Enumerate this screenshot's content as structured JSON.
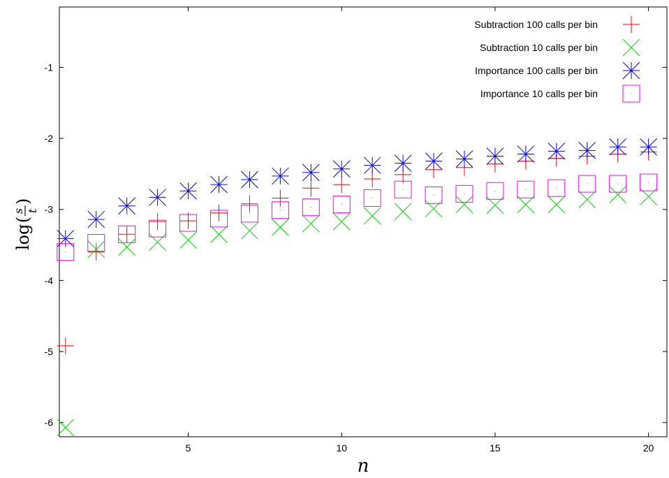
{
  "chart_data": {
    "type": "scatter",
    "title": "",
    "xlabel": "n",
    "ylabel": "log(s/t)",
    "ylabel_parts": {
      "func": "log",
      "num": "s",
      "den": "t"
    },
    "xlim": [
      0.8,
      20.6
    ],
    "ylim": [
      -6.2,
      -0.15
    ],
    "xticks": [
      5,
      10,
      15,
      20
    ],
    "yticks": [
      -1,
      -2,
      -3,
      -4,
      -5,
      -6
    ],
    "grid": false,
    "legend_position": "top-right",
    "series": [
      {
        "name": "Subtraction 100 calls per bin",
        "marker": "plus",
        "color": "#ff0000",
        "x": [
          1,
          2,
          3,
          4,
          5,
          6,
          7,
          8,
          9,
          10,
          11,
          12,
          13,
          14,
          15,
          16,
          17,
          18,
          19,
          20
        ],
        "y": [
          -4.92,
          -3.6,
          -3.35,
          -3.17,
          -3.16,
          -3.05,
          -2.92,
          -2.84,
          -2.7,
          -2.65,
          -2.57,
          -2.51,
          -2.44,
          -2.41,
          -2.36,
          -2.32,
          -2.28,
          -2.25,
          -2.22,
          -2.19
        ]
      },
      {
        "name": "Subtraction 10 calls per bin",
        "marker": "cross",
        "color": "#00dd00",
        "x": [
          1,
          2,
          3,
          4,
          5,
          6,
          7,
          8,
          9,
          10,
          11,
          12,
          13,
          14,
          15,
          16,
          17,
          18,
          19,
          20
        ],
        "y": [
          -6.07,
          -3.56,
          -3.53,
          -3.46,
          -3.43,
          -3.35,
          -3.3,
          -3.25,
          -3.2,
          -3.17,
          -3.09,
          -3.03,
          -2.99,
          -2.93,
          -2.94,
          -2.93,
          -2.93,
          -2.86,
          -2.79,
          -2.82
        ]
      },
      {
        "name": "Importance 100 calls per bin",
        "marker": "star",
        "color": "#0000ff",
        "x": [
          1,
          2,
          3,
          4,
          5,
          6,
          7,
          8,
          9,
          10,
          11,
          12,
          13,
          14,
          15,
          16,
          17,
          18,
          19,
          20
        ],
        "y": [
          -3.41,
          -3.14,
          -2.95,
          -2.83,
          -2.74,
          -2.65,
          -2.58,
          -2.53,
          -2.48,
          -2.43,
          -2.38,
          -2.35,
          -2.32,
          -2.29,
          -2.25,
          -2.22,
          -2.18,
          -2.17,
          -2.12,
          -2.12
        ]
      },
      {
        "name": "Importance 10 calls per bin",
        "marker": "square",
        "color": "#ff00ff",
        "x": [
          1,
          2,
          3,
          4,
          5,
          6,
          7,
          8,
          9,
          10,
          11,
          12,
          13,
          14,
          15,
          16,
          17,
          18,
          19,
          20
        ],
        "y": [
          -3.6,
          -3.47,
          -3.35,
          -3.27,
          -3.19,
          -3.13,
          -3.06,
          -3.01,
          -2.97,
          -2.93,
          -2.84,
          -2.72,
          -2.8,
          -2.78,
          -2.74,
          -2.72,
          -2.7,
          -2.64,
          -2.64,
          -2.62
        ]
      }
    ]
  }
}
